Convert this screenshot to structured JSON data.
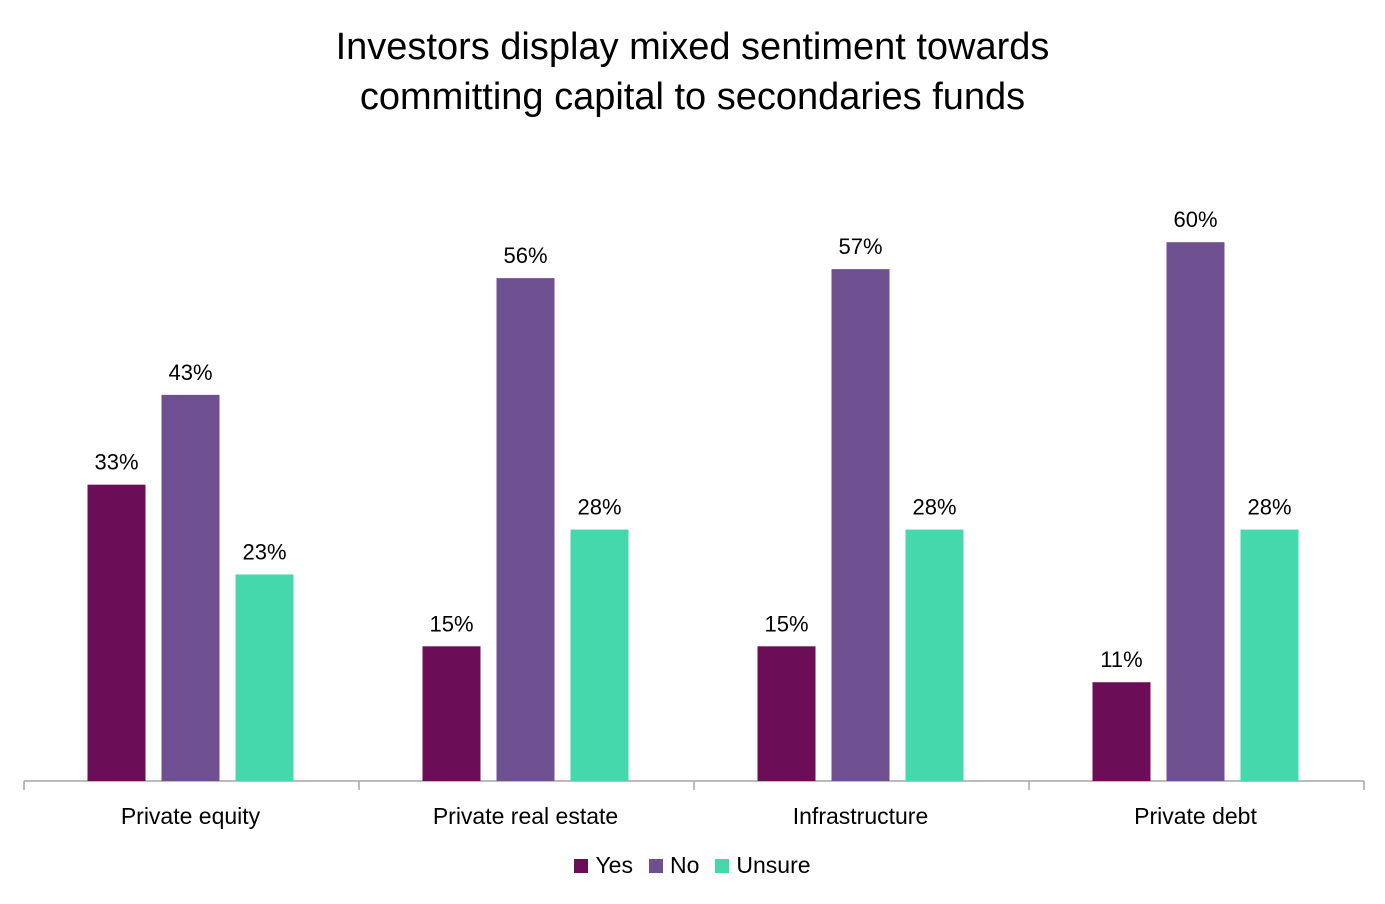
{
  "chart_data": {
    "type": "bar",
    "title": "Investors display mixed sentiment towards committing capital to secondaries funds",
    "title_lines": [
      "Investors display mixed sentiment towards",
      "committing capital to secondaries funds"
    ],
    "categories": [
      "Private equity",
      "Private real estate",
      "Infrastructure",
      "Private debt"
    ],
    "series": [
      {
        "name": "Yes",
        "values": [
          33,
          15,
          15,
          11
        ],
        "labels": [
          "33%",
          "15%",
          "15%",
          "11%"
        ],
        "color": "#6b0e57"
      },
      {
        "name": "No",
        "values": [
          43,
          56,
          57,
          60
        ],
        "labels": [
          "43%",
          "56%",
          "57%",
          "60%"
        ],
        "color": "#6e5090"
      },
      {
        "name": "Unsure",
        "values": [
          23,
          28,
          28,
          28
        ],
        "labels": [
          "23%",
          "28%",
          "28%",
          "28%"
        ],
        "color": "#46d8ad"
      }
    ],
    "ylim": [
      0,
      65
    ],
    "grid": false,
    "legend": "bottom",
    "axis_color": "#a6a6a6"
  }
}
